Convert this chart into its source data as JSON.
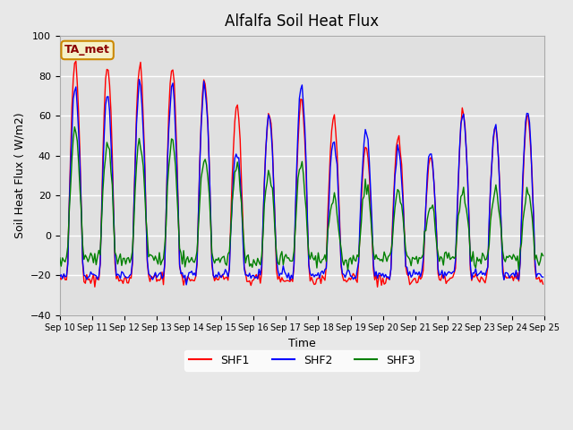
{
  "title": "Alfalfa Soil Heat Flux",
  "xlabel": "Time",
  "ylabel": "Soil Heat Flux ( W/m2)",
  "ylim": [
    -40,
    100
  ],
  "yticks": [
    -40,
    -20,
    0,
    20,
    40,
    60,
    80,
    100
  ],
  "background_color": "#e8e8e8",
  "plot_bg_color": "#e0e0e0",
  "grid_color": "white",
  "shf1_color": "red",
  "shf2_color": "blue",
  "shf3_color": "green",
  "legend_labels": [
    "SHF1",
    "SHF2",
    "SHF3"
  ],
  "annotation_text": "TA_met",
  "annotation_box_color": "#f5f0c8",
  "annotation_border_color": "#cc8800",
  "x_tick_labels": [
    "Sep 10",
    "Sep 11",
    "Sep 12",
    "Sep 13",
    "Sep 14",
    "Sep 15",
    "Sep 16",
    "Sep 17",
    "Sep 18",
    "Sep 19",
    "Sep 20",
    "Sep 21",
    "Sep 22",
    "Sep 23",
    "Sep 24",
    "Sep 25"
  ],
  "n_days": 15,
  "points_per_day": 24,
  "shf1_peaks": [
    88,
    85,
    85,
    85,
    78,
    64,
    62,
    68,
    60,
    45,
    50,
    40,
    62,
    55,
    60
  ],
  "shf2_peaks": [
    75,
    70,
    75,
    74,
    75,
    42,
    60,
    75,
    47,
    53,
    42,
    42,
    61,
    55,
    62
  ],
  "shf3_peaks": [
    53,
    47,
    47,
    48,
    40,
    33,
    30,
    35,
    20,
    25,
    22,
    15,
    22,
    22,
    22
  ],
  "night_val1": -22,
  "night_val2": -20,
  "night_val3": -12
}
